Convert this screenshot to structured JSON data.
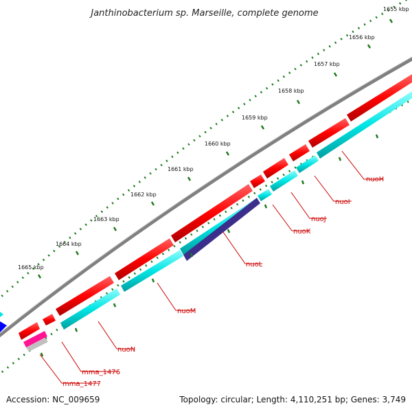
{
  "title": "Janthinobacterium sp. Marseille, complete genome",
  "footer": {
    "accession": "Accession: NC_009659",
    "summary": "Topology: circular; Length: 4,110,251 bp; Genes: 3,749"
  },
  "ticks": [
    {
      "label": "1655 kbp",
      "kbp": 1655
    },
    {
      "label": "1656 kbp",
      "kbp": 1656
    },
    {
      "label": "1657 kbp",
      "kbp": 1657
    },
    {
      "label": "1658 kbp",
      "kbp": 1658
    },
    {
      "label": "1659 kbp",
      "kbp": 1659
    },
    {
      "label": "1660 kbp",
      "kbp": 1660
    },
    {
      "label": "1661 kbp",
      "kbp": 1661
    },
    {
      "label": "1662 kbp",
      "kbp": 1662
    },
    {
      "label": "1663 kbp",
      "kbp": 1663
    },
    {
      "label": "1664 kbp",
      "kbp": 1664
    },
    {
      "label": "1665 kbp",
      "kbp": 1665
    }
  ],
  "genes": [
    {
      "name": "nuoH"
    },
    {
      "name": "nuoI"
    },
    {
      "name": "nuoJ"
    },
    {
      "name": "nuoK"
    },
    {
      "name": "nuoL"
    },
    {
      "name": "nuoM"
    },
    {
      "name": "nuoN"
    },
    {
      "name": "mma_1476"
    },
    {
      "name": "mma_1477"
    }
  ],
  "colors": {
    "cds": "#ff0000",
    "gene": "#00e5e5",
    "highlight": "#3c2f8c",
    "backbone": "#808080",
    "tick": "#1a7a1a",
    "label": "#cc0000",
    "pink": "#ff1493",
    "blue": "#0000ff"
  }
}
